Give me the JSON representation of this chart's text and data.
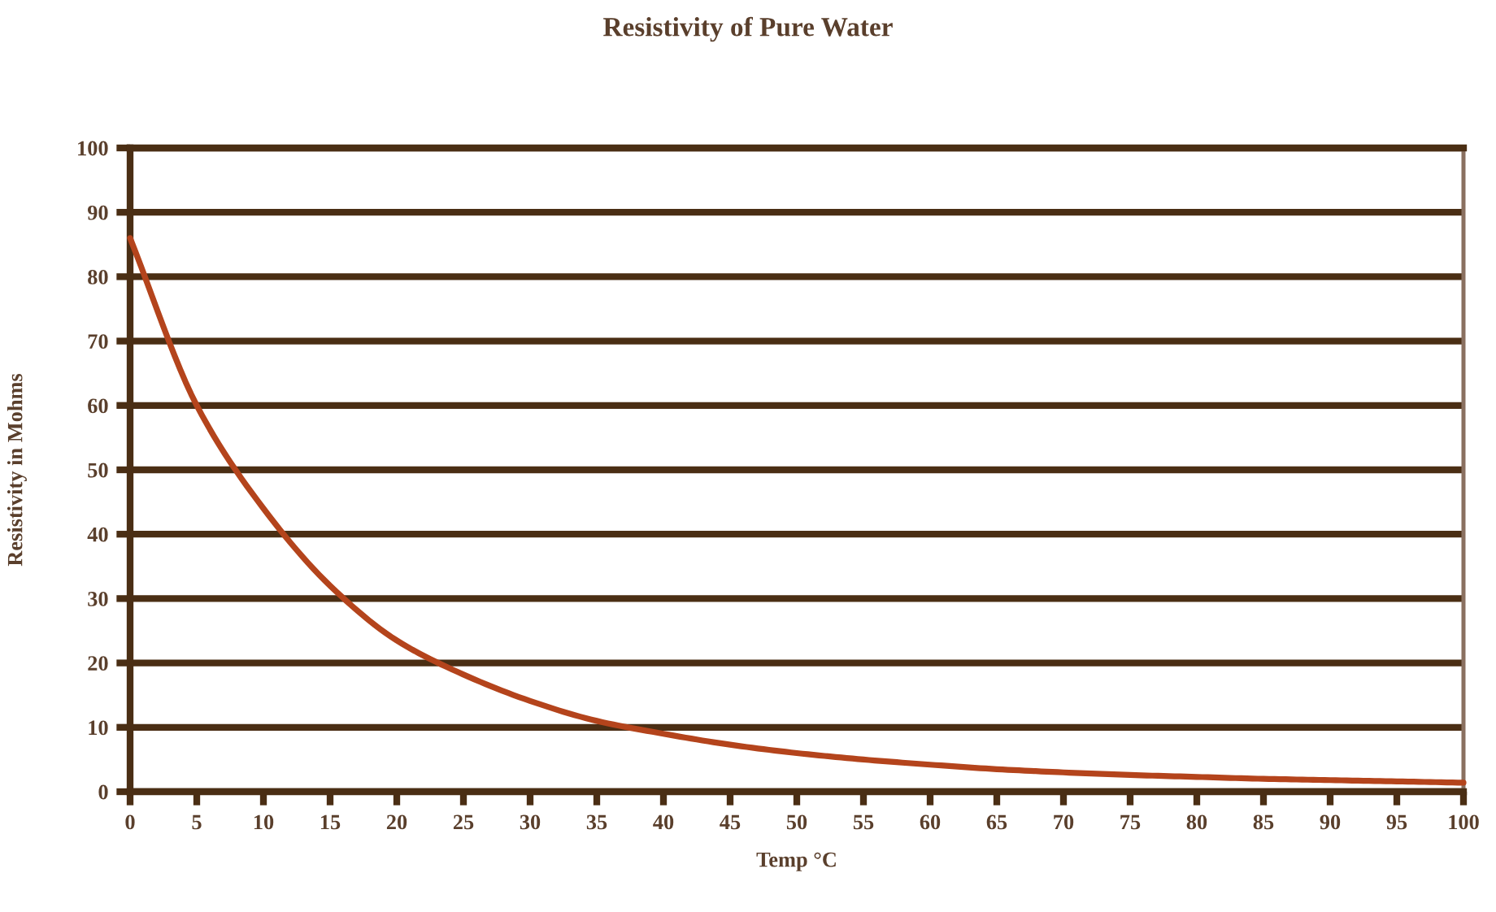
{
  "chart_data": {
    "type": "line",
    "title": "Resistivity of Pure Water",
    "xlabel": "Temp °C",
    "ylabel": "Resistivity in Mohms",
    "x": [
      0,
      5,
      10,
      15,
      20,
      25,
      30,
      35,
      40,
      45,
      50,
      55,
      60,
      65,
      70,
      75,
      80,
      85,
      90,
      95,
      100
    ],
    "series": [
      {
        "color": "#b4441c",
        "values": [
          86,
          60,
          44,
          32,
          23.5,
          18.2,
          14.1,
          11,
          9,
          7.3,
          6,
          5,
          4.2,
          3.5,
          3,
          2.6,
          2.3,
          2,
          1.8,
          1.6,
          1.4
        ]
      }
    ],
    "xlim": [
      0,
      100
    ],
    "ylim": [
      0,
      100
    ],
    "xticks": [
      0,
      5,
      10,
      15,
      20,
      25,
      30,
      35,
      40,
      45,
      50,
      55,
      60,
      65,
      70,
      75,
      80,
      85,
      90,
      95,
      100
    ],
    "yticks": [
      0,
      10,
      20,
      30,
      40,
      50,
      60,
      70,
      80,
      90,
      100
    ],
    "grid": "y"
  }
}
